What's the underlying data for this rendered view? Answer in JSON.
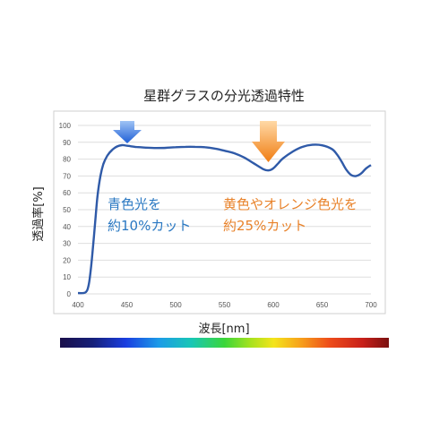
{
  "chart_data": {
    "type": "line",
    "title": "星群グラスの分光透過特性",
    "xlabel": "波長[nm]",
    "ylabel": "透過率[%]",
    "xlim": [
      400,
      700
    ],
    "ylim": [
      0,
      100
    ],
    "x_ticks": [
      400,
      450,
      500,
      550,
      600,
      650,
      700
    ],
    "y_ticks": [
      0,
      10,
      20,
      30,
      40,
      50,
      60,
      70,
      80,
      90,
      100
    ],
    "grid": "horizontal",
    "series": [
      {
        "color": "#2f5aa8",
        "x": [
          400,
          405,
          408,
          410,
          412,
          415,
          418,
          420,
          423,
          426,
          430,
          435,
          440,
          445,
          450,
          460,
          470,
          480,
          490,
          500,
          510,
          520,
          530,
          540,
          550,
          560,
          570,
          580,
          590,
          595,
          600,
          605,
          610,
          620,
          630,
          640,
          650,
          660,
          665,
          670,
          675,
          680,
          685,
          690,
          695,
          700
        ],
        "y": [
          0.5,
          0.5,
          1,
          3,
          9,
          25,
          45,
          58,
          70,
          77,
          82,
          85.5,
          87.5,
          88.3,
          88.0,
          87.2,
          86.8,
          86.6,
          86.7,
          87.1,
          87.3,
          87.3,
          87.1,
          86.3,
          85.0,
          83.5,
          81.0,
          77.5,
          74.0,
          73.3,
          74.5,
          77.5,
          80.5,
          84.5,
          87.3,
          88.5,
          88.2,
          86.0,
          83.0,
          78.5,
          73.5,
          70.5,
          70.0,
          71.5,
          74.5,
          76.5
        ]
      }
    ],
    "annotations": [
      {
        "text": "青色光を",
        "color": "#2a78c2"
      },
      {
        "text": "約10%カット",
        "color": "#2a78c2"
      },
      {
        "text": "黄色やオレンジ色光を",
        "color": "#e8822a"
      },
      {
        "text": "約25%カット",
        "color": "#e8822a"
      }
    ]
  }
}
